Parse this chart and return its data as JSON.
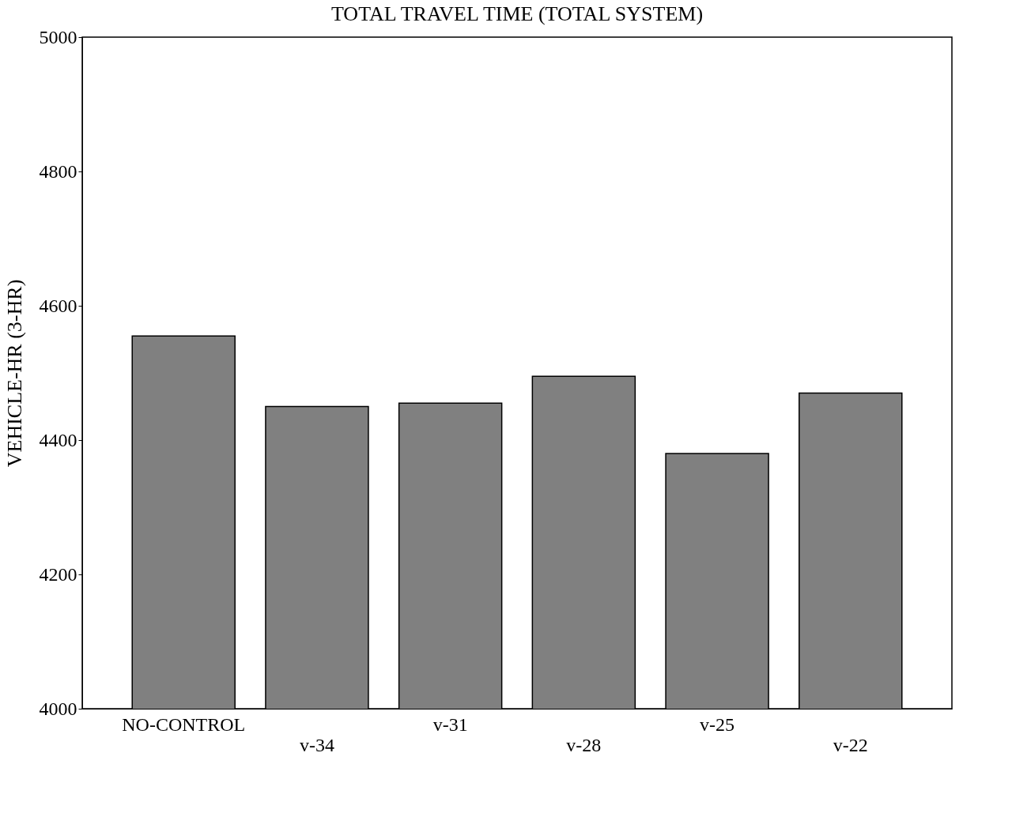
{
  "chart_data": {
    "type": "bar",
    "title": "TOTAL TRAVEL TIME (TOTAL SYSTEM)",
    "ylabel": "VEHICLE-HR (3-HR)",
    "categories": [
      "NO-CONTROL",
      "v-34",
      "v-31",
      "v-28",
      "v-25",
      "v-22"
    ],
    "values": [
      4555,
      4450,
      4455,
      4495,
      4380,
      4470
    ],
    "color": "#808080",
    "ylim": [
      4000,
      5000
    ],
    "yticks": [
      4000,
      4200,
      4400,
      4600,
      4800,
      5000
    ],
    "grid": false
  }
}
